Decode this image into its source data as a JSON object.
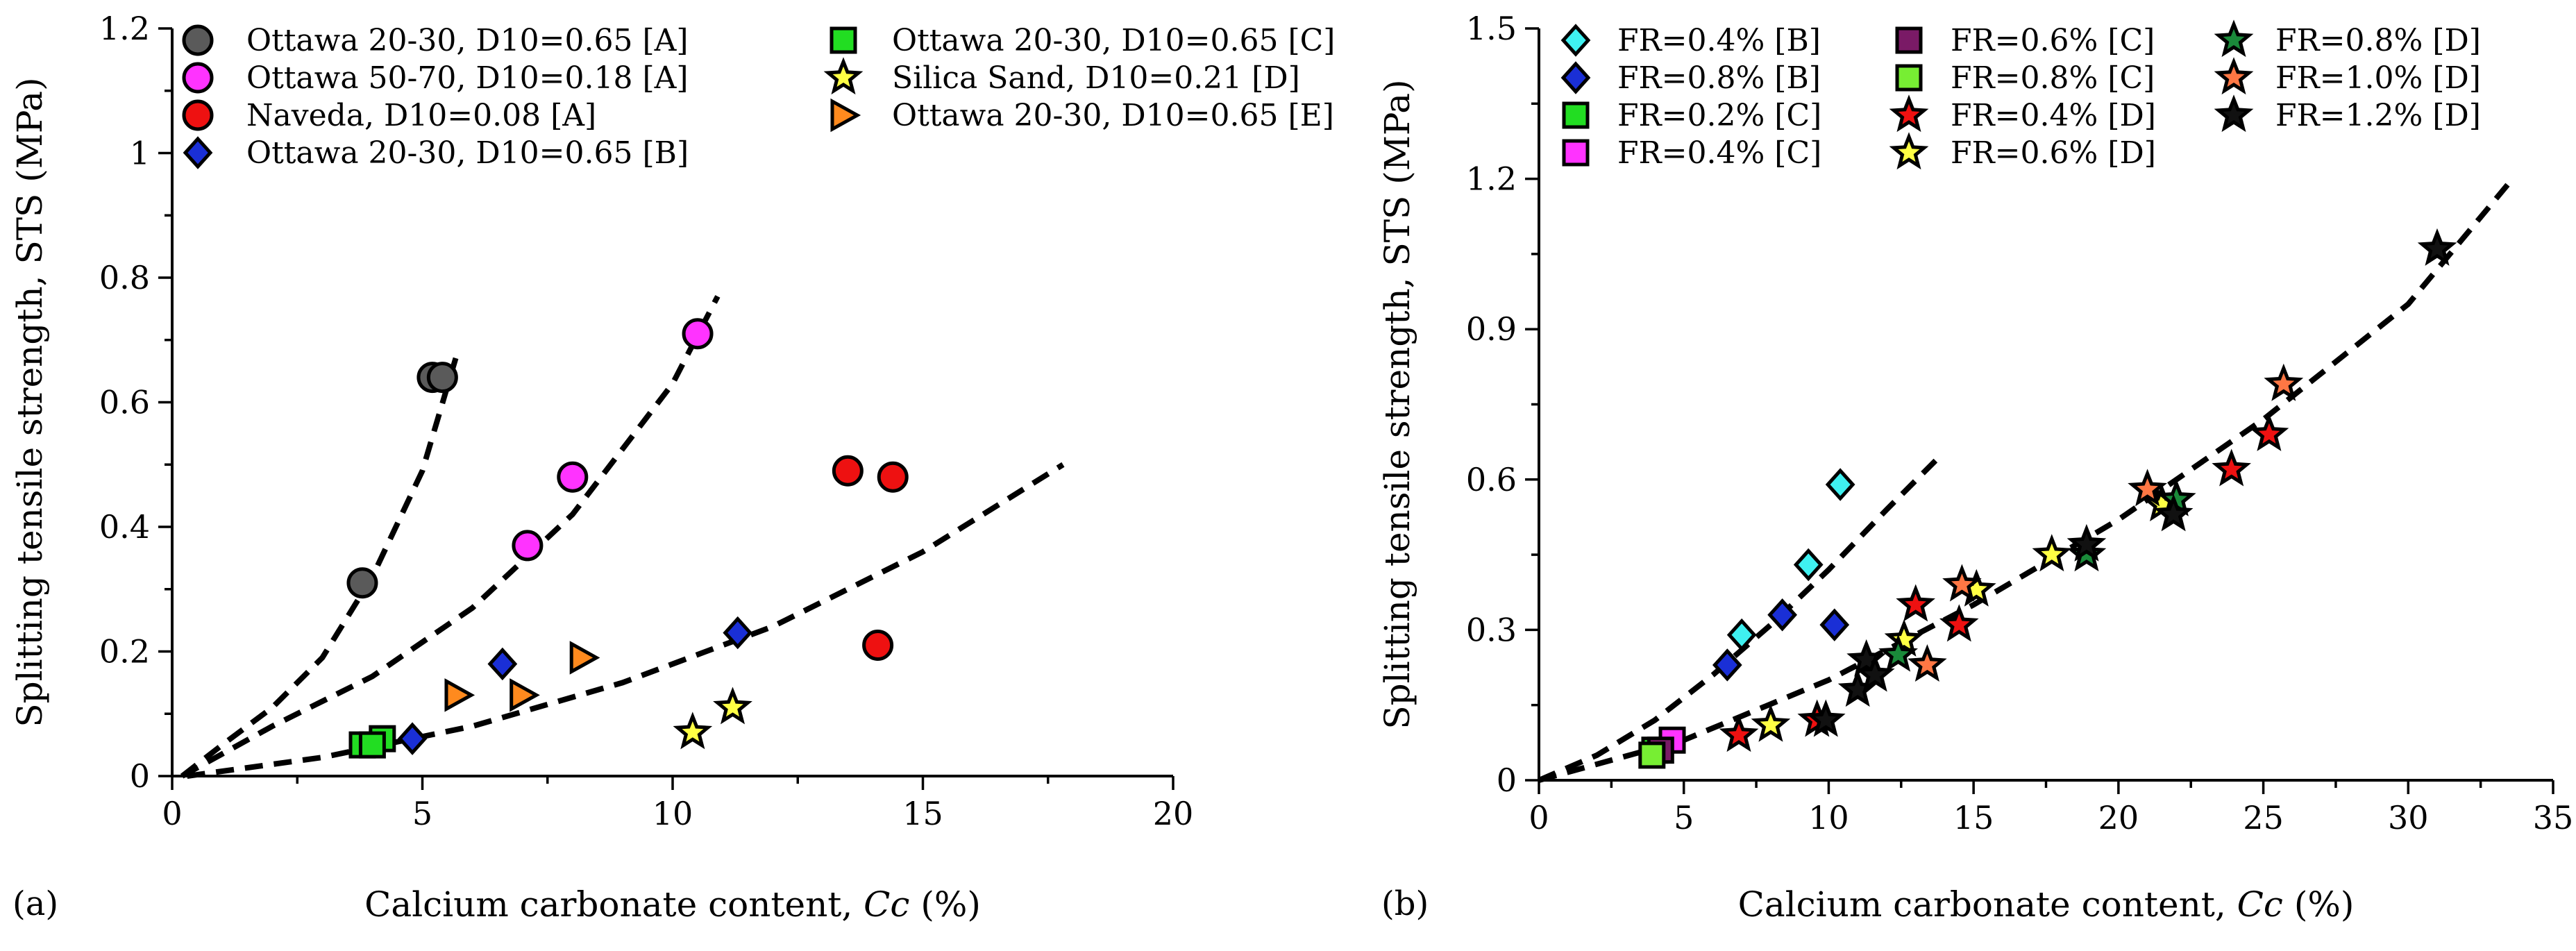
{
  "chart_data": [
    {
      "panel": "(a)",
      "type": "scatter",
      "xlabel_main": "Calcium carbonate content, ",
      "xlabel_italic": "Cc",
      "xlabel_unit": " (%)",
      "ylabel": "Splitting tensile strength, STS (MPa)",
      "xlim": [
        0,
        20
      ],
      "ylim": [
        0,
        1.2
      ],
      "xticks": [
        "0",
        "5",
        "10",
        "15",
        "20"
      ],
      "yticks": [
        "0",
        "0.2",
        "0.4",
        "0.6",
        "0.8",
        "1",
        "1.2"
      ],
      "legend": [
        {
          "label": "Ottawa 20-30, D10=0.65 [A]",
          "marker": "circle",
          "color": "#5a5a5a"
        },
        {
          "label": "Ottawa 50-70, D10=0.18 [A]",
          "marker": "circle",
          "color": "#ff33ff"
        },
        {
          "label": "Naveda, D10=0.08 [A]",
          "marker": "circle",
          "color": "#ee1111"
        },
        {
          "label": "Ottawa 20-30, D10=0.65 [B]",
          "marker": "diamond",
          "color": "#1a2fd6"
        },
        {
          "label": "Ottawa 20-30, D10=0.65 [C]",
          "marker": "square",
          "color": "#22dd22"
        },
        {
          "label": "Silica Sand, D10=0.21 [D]",
          "marker": "star",
          "color": "#ffff44"
        },
        {
          "label": "Ottawa 20-30, D10=0.65 [E]",
          "marker": "triangle-right",
          "color": "#ff8a1e"
        }
      ],
      "series": [
        {
          "name": "Ottawa 20-30, D10=0.65 [A]",
          "x": [
            3.8,
            5.2,
            5.4
          ],
          "y": [
            0.31,
            0.64,
            0.64
          ]
        },
        {
          "name": "Ottawa 50-70, D10=0.18 [A]",
          "x": [
            7.1,
            8.0,
            10.5
          ],
          "y": [
            0.37,
            0.48,
            0.71
          ]
        },
        {
          "name": "Naveda, D10=0.08 [A]",
          "x": [
            13.5,
            14.4,
            14.1
          ],
          "y": [
            0.49,
            0.48,
            0.21
          ]
        },
        {
          "name": "Ottawa 20-30, D10=0.65 [B]",
          "x": [
            4.8,
            6.6,
            11.3
          ],
          "y": [
            0.06,
            0.18,
            0.23
          ]
        },
        {
          "name": "Ottawa 20-30, D10=0.65 [C]",
          "x": [
            3.8,
            4.2,
            4.0
          ],
          "y": [
            0.05,
            0.06,
            0.05
          ]
        },
        {
          "name": "Silica Sand, D10=0.21 [D]",
          "x": [
            10.4,
            11.2
          ],
          "y": [
            0.07,
            0.11
          ]
        },
        {
          "name": "Ottawa 20-30, D10=0.65 [E]",
          "x": [
            5.7,
            7.0,
            8.2
          ],
          "y": [
            0.13,
            0.13,
            0.19
          ]
        }
      ],
      "fits": [
        {
          "x": [
            0.2,
            1,
            2,
            3,
            4,
            5,
            5.7
          ],
          "y": [
            0.0,
            0.05,
            0.11,
            0.19,
            0.32,
            0.49,
            0.68
          ]
        },
        {
          "x": [
            0.2,
            2,
            4,
            6,
            8,
            10,
            10.9
          ],
          "y": [
            0.0,
            0.08,
            0.16,
            0.27,
            0.42,
            0.63,
            0.77
          ]
        },
        {
          "x": [
            0.3,
            3,
            6,
            9,
            12,
            15,
            17.8
          ],
          "y": [
            0.0,
            0.03,
            0.08,
            0.15,
            0.24,
            0.36,
            0.5
          ]
        }
      ]
    },
    {
      "panel": "(b)",
      "type": "scatter",
      "xlabel_main": "Calcium carbonate content, ",
      "xlabel_italic": "Cc",
      "xlabel_unit": " (%)",
      "ylabel": "Splitting tensile strength, STS (MPa)",
      "xlim": [
        0,
        35
      ],
      "ylim": [
        0,
        1.5
      ],
      "xticks": [
        "0",
        "5",
        "10",
        "15",
        "20",
        "25",
        "30",
        "35"
      ],
      "yticks": [
        "0",
        "0.3",
        "0.6",
        "0.9",
        "1.2",
        "1.5"
      ],
      "legend": [
        {
          "label": "FR=0.4% [B]",
          "marker": "diamond",
          "color": "#3ff0f0"
        },
        {
          "label": "FR=0.8% [B]",
          "marker": "diamond",
          "color": "#1a2fd6"
        },
        {
          "label": "FR=0.2% [C]",
          "marker": "square",
          "color": "#22dd22"
        },
        {
          "label": "FR=0.4% [C]",
          "marker": "square",
          "color": "#ff33ff"
        },
        {
          "label": "FR=0.6% [C]",
          "marker": "square",
          "color": "#7a1a66"
        },
        {
          "label": "FR=0.8% [C]",
          "marker": "square",
          "color": "#77ee33"
        },
        {
          "label": "FR=0.4% [D]",
          "marker": "star",
          "color": "#ee1111"
        },
        {
          "label": "FR=0.6% [D]",
          "marker": "star",
          "color": "#ffff44"
        },
        {
          "label": "FR=0.8% [D]",
          "marker": "star",
          "color": "#1a8a3a"
        },
        {
          "label": "FR=1.0% [D]",
          "marker": "star",
          "color": "#ff7744"
        },
        {
          "label": "FR=1.2% [D]",
          "marker": "star",
          "color": "#111111"
        }
      ],
      "series": [
        {
          "name": "FR=0.4% [B]",
          "x": [
            7.0,
            9.3,
            10.4
          ],
          "y": [
            0.29,
            0.43,
            0.59
          ]
        },
        {
          "name": "FR=0.8% [B]",
          "x": [
            6.5,
            8.4,
            10.2
          ],
          "y": [
            0.23,
            0.33,
            0.31
          ]
        },
        {
          "name": "FR=0.2% [C]",
          "x": [
            4.0
          ],
          "y": [
            0.06
          ]
        },
        {
          "name": "FR=0.4% [C]",
          "x": [
            4.6
          ],
          "y": [
            0.08
          ]
        },
        {
          "name": "FR=0.6% [C]",
          "x": [
            4.2
          ],
          "y": [
            0.06
          ]
        },
        {
          "name": "FR=0.8% [C]",
          "x": [
            3.9
          ],
          "y": [
            0.05
          ]
        },
        {
          "name": "FR=0.4% [D]",
          "x": [
            6.9,
            9.6,
            13.0,
            14.5,
            23.9,
            25.2
          ],
          "y": [
            0.09,
            0.12,
            0.35,
            0.31,
            0.62,
            0.69
          ]
        },
        {
          "name": "FR=0.6% [D]",
          "x": [
            8.0,
            12.6,
            15.1,
            17.7,
            21.5
          ],
          "y": [
            0.11,
            0.28,
            0.38,
            0.45,
            0.55
          ]
        },
        {
          "name": "FR=0.8% [D]",
          "x": [
            12.4,
            18.9,
            22.0
          ],
          "y": [
            0.25,
            0.45,
            0.56
          ]
        },
        {
          "name": "FR=1.0% [D]",
          "x": [
            13.4,
            14.6,
            21.0,
            25.7
          ],
          "y": [
            0.23,
            0.39,
            0.58,
            0.79
          ]
        },
        {
          "name": "FR=1.2% [D]",
          "x": [
            9.9,
            11.0,
            11.3,
            11.6,
            18.9,
            21.9,
            31.0
          ],
          "y": [
            0.12,
            0.18,
            0.24,
            0.21,
            0.47,
            0.53,
            1.06
          ]
        }
      ],
      "fits": [
        {
          "x": [
            0,
            2,
            4,
            6,
            8,
            10,
            12,
            13.9
          ],
          "y": [
            0.0,
            0.05,
            0.12,
            0.21,
            0.31,
            0.42,
            0.54,
            0.65
          ]
        },
        {
          "x": [
            0,
            5,
            10,
            15,
            20,
            25,
            30,
            33.6
          ],
          "y": [
            0.0,
            0.08,
            0.2,
            0.35,
            0.52,
            0.72,
            0.95,
            1.2
          ]
        }
      ]
    }
  ],
  "panel_labels": {
    "a": "(a)",
    "b": "(b)"
  }
}
